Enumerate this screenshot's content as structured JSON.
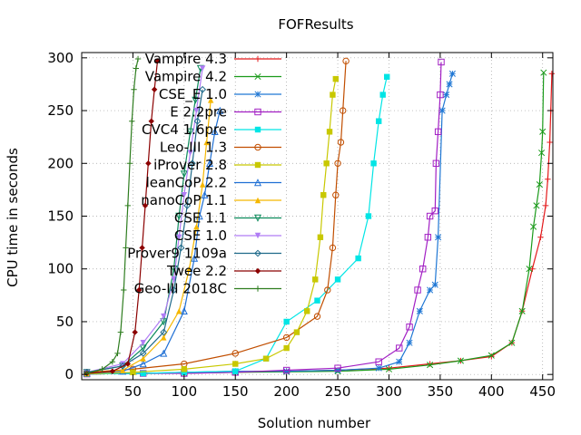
{
  "chart_data": {
    "type": "line",
    "title": "FOFResults",
    "xlabel": "Solution number",
    "ylabel": "CPU time in seconds",
    "xlim": [
      0,
      460
    ],
    "ylim": [
      -5,
      305
    ],
    "xticks": [
      50,
      100,
      150,
      200,
      250,
      300,
      350,
      400,
      450
    ],
    "yticks": [
      0,
      50,
      100,
      150,
      200,
      250,
      300
    ],
    "grid": true,
    "legend_position": "top-left",
    "series": [
      {
        "name": "Vampire 4.3",
        "color": "#e41a1c",
        "marker": "plus",
        "points": [
          [
            5,
            0.5
          ],
          [
            60,
            1
          ],
          [
            100,
            1.5
          ],
          [
            150,
            2
          ],
          [
            200,
            3
          ],
          [
            250,
            4
          ],
          [
            300,
            6
          ],
          [
            340,
            10
          ],
          [
            370,
            13
          ],
          [
            400,
            17
          ],
          [
            420,
            30
          ],
          [
            430,
            60
          ],
          [
            440,
            100
          ],
          [
            448,
            130
          ],
          [
            453,
            160
          ],
          [
            455,
            185
          ],
          [
            457,
            220
          ],
          [
            458,
            250
          ],
          [
            459,
            285
          ]
        ]
      },
      {
        "name": "Vampire 4.2",
        "color": "#1a9a1a",
        "marker": "cross",
        "points": [
          [
            5,
            0.5
          ],
          [
            60,
            1
          ],
          [
            100,
            1.2
          ],
          [
            150,
            2
          ],
          [
            200,
            2.5
          ],
          [
            250,
            3
          ],
          [
            300,
            5
          ],
          [
            340,
            9
          ],
          [
            370,
            13
          ],
          [
            400,
            18
          ],
          [
            420,
            30
          ],
          [
            430,
            60
          ],
          [
            437,
            100
          ],
          [
            441,
            140
          ],
          [
            444,
            160
          ],
          [
            447,
            180
          ],
          [
            449,
            210
          ],
          [
            450,
            230
          ],
          [
            451,
            286
          ]
        ]
      },
      {
        "name": "CSE_E 1.0",
        "color": "#1f77d4",
        "marker": "star",
        "points": [
          [
            5,
            0.5
          ],
          [
            60,
            1
          ],
          [
            100,
            2
          ],
          [
            150,
            3
          ],
          [
            200,
            3
          ],
          [
            250,
            4
          ],
          [
            290,
            6
          ],
          [
            310,
            12
          ],
          [
            320,
            30
          ],
          [
            330,
            60
          ],
          [
            340,
            80
          ],
          [
            345,
            85
          ],
          [
            348,
            130
          ],
          [
            352,
            250
          ],
          [
            356,
            265
          ],
          [
            359,
            275
          ],
          [
            362,
            285
          ]
        ]
      },
      {
        "name": "E 2.2pre",
        "color": "#a21fc4",
        "marker": "square",
        "points": [
          [
            5,
            0.5
          ],
          [
            60,
            1
          ],
          [
            100,
            1
          ],
          [
            150,
            2
          ],
          [
            200,
            4
          ],
          [
            250,
            6
          ],
          [
            290,
            12
          ],
          [
            310,
            25
          ],
          [
            320,
            45
          ],
          [
            328,
            80
          ],
          [
            333,
            100
          ],
          [
            338,
            130
          ],
          [
            340,
            150
          ],
          [
            345,
            155
          ],
          [
            346,
            200
          ],
          [
            348,
            230
          ],
          [
            350,
            265
          ],
          [
            351,
            296
          ]
        ]
      },
      {
        "name": "CVC4 1.6pre",
        "color": "#00e5e5",
        "marker": "filled-square",
        "points": [
          [
            5,
            0.5
          ],
          [
            60,
            1
          ],
          [
            100,
            2
          ],
          [
            150,
            3
          ],
          [
            180,
            15
          ],
          [
            200,
            50
          ],
          [
            230,
            70
          ],
          [
            250,
            90
          ],
          [
            270,
            110
          ],
          [
            280,
            150
          ],
          [
            285,
            200
          ],
          [
            290,
            240
          ],
          [
            294,
            265
          ],
          [
            298,
            282
          ]
        ]
      },
      {
        "name": "Leo-III 1.3",
        "color": "#c14e00",
        "marker": "circle",
        "points": [
          [
            5,
            2
          ],
          [
            50,
            5
          ],
          [
            100,
            10
          ],
          [
            150,
            20
          ],
          [
            200,
            35
          ],
          [
            230,
            55
          ],
          [
            240,
            80
          ],
          [
            245,
            120
          ],
          [
            248,
            170
          ],
          [
            250,
            200
          ],
          [
            253,
            220
          ],
          [
            255,
            250
          ],
          [
            258,
            297
          ]
        ]
      },
      {
        "name": "iProver 2.8",
        "color": "#c8c800",
        "marker": "filled-square",
        "points": [
          [
            5,
            0.5
          ],
          [
            50,
            2
          ],
          [
            100,
            5
          ],
          [
            150,
            10
          ],
          [
            180,
            15
          ],
          [
            200,
            25
          ],
          [
            210,
            40
          ],
          [
            220,
            60
          ],
          [
            228,
            90
          ],
          [
            233,
            130
          ],
          [
            236,
            170
          ],
          [
            239,
            200
          ],
          [
            242,
            230
          ],
          [
            245,
            265
          ],
          [
            248,
            280
          ]
        ]
      },
      {
        "name": "leanCoP 2.2",
        "color": "#1f6fd4",
        "marker": "triangle",
        "points": [
          [
            5,
            1
          ],
          [
            40,
            3
          ],
          [
            60,
            10
          ],
          [
            80,
            20
          ],
          [
            100,
            60
          ],
          [
            110,
            110
          ],
          [
            115,
            150
          ],
          [
            120,
            170
          ],
          [
            125,
            200
          ],
          [
            130,
            230
          ],
          [
            135,
            250
          ]
        ]
      },
      {
        "name": "nanoCoP 1.1",
        "color": "#f5b700",
        "marker": "filled-triangle",
        "points": [
          [
            5,
            1
          ],
          [
            40,
            4
          ],
          [
            60,
            15
          ],
          [
            80,
            35
          ],
          [
            95,
            60
          ],
          [
            105,
            100
          ],
          [
            112,
            140
          ],
          [
            118,
            180
          ],
          [
            122,
            220
          ],
          [
            126,
            260
          ]
        ]
      },
      {
        "name": "CSE 1.1",
        "color": "#0a8a5a",
        "marker": "inv-triangle",
        "points": [
          [
            5,
            2
          ],
          [
            40,
            8
          ],
          [
            60,
            25
          ],
          [
            80,
            50
          ],
          [
            90,
            100
          ],
          [
            95,
            150
          ],
          [
            100,
            190
          ],
          [
            106,
            230
          ],
          [
            111,
            260
          ],
          [
            116,
            290
          ]
        ]
      },
      {
        "name": "CSE 1.0",
        "color": "#b07cf5",
        "marker": "filled-inv-triangle",
        "points": [
          [
            5,
            2
          ],
          [
            40,
            10
          ],
          [
            60,
            30
          ],
          [
            80,
            55
          ],
          [
            90,
            90
          ],
          [
            95,
            130
          ],
          [
            100,
            170
          ],
          [
            106,
            210
          ],
          [
            112,
            250
          ],
          [
            118,
            290
          ]
        ]
      },
      {
        "name": "Prover9 1109a",
        "color": "#1f6a8a",
        "marker": "diamond",
        "points": [
          [
            5,
            2
          ],
          [
            40,
            8
          ],
          [
            60,
            20
          ],
          [
            80,
            40
          ],
          [
            90,
            80
          ],
          [
            97,
            120
          ],
          [
            103,
            160
          ],
          [
            108,
            200
          ],
          [
            113,
            240
          ],
          [
            118,
            270
          ]
        ]
      },
      {
        "name": "Twee 2.2",
        "color": "#8b0000",
        "marker": "filled-diamond",
        "points": [
          [
            5,
            1
          ],
          [
            30,
            3
          ],
          [
            45,
            10
          ],
          [
            52,
            40
          ],
          [
            56,
            80
          ],
          [
            59,
            120
          ],
          [
            62,
            160
          ],
          [
            65,
            200
          ],
          [
            68,
            240
          ],
          [
            71,
            270
          ],
          [
            74,
            297
          ]
        ]
      },
      {
        "name": "Geo-III 2018C",
        "color": "#2e7d1f",
        "marker": "plus",
        "points": [
          [
            5,
            1
          ],
          [
            20,
            5
          ],
          [
            30,
            12
          ],
          [
            35,
            20
          ],
          [
            38,
            40
          ],
          [
            41,
            80
          ],
          [
            43,
            120
          ],
          [
            45,
            160
          ],
          [
            47,
            200
          ],
          [
            49,
            240
          ],
          [
            51,
            270
          ],
          [
            53,
            290
          ],
          [
            55,
            299
          ]
        ]
      }
    ]
  }
}
